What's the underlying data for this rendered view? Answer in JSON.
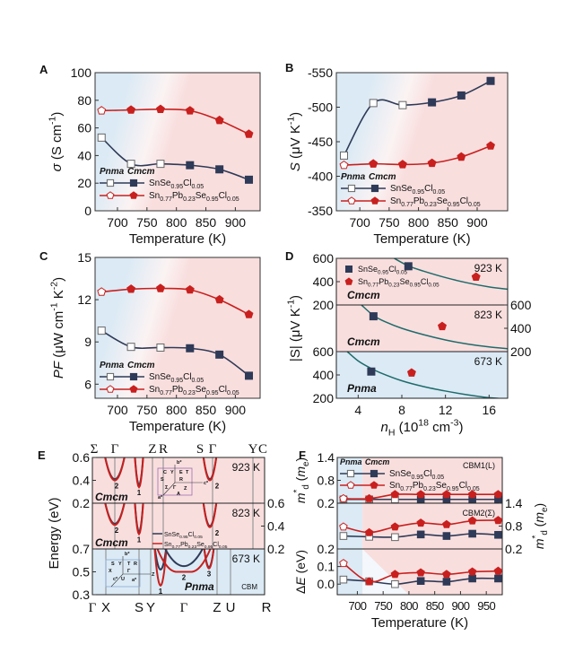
{
  "colors": {
    "snse": "#2e3a57",
    "pb": "#c8201e",
    "pnma": "#2a6ebb",
    "cmcm": "#c8201e",
    "pnma_bg": "#dbeaf5",
    "cmcm_bg": "#f9dede",
    "curve": "#1f6b6b"
  },
  "legend": {
    "pnma": "Pnma",
    "cmcm": "Cmcm",
    "snse": "SnSe_{0.95}Cl_{0.05}",
    "pb": "Sn_{0.77}Pb_{0.23}Se_{0.95}Cl_{0.05}"
  },
  "chart_data": [
    {
      "id": "A",
      "panel_label": "A",
      "type": "line",
      "xlabel": "Temperature (K)",
      "ylabel": "*σ* (S cm^{-1})",
      "xlim": [
        662,
        942
      ],
      "ylim": [
        0,
        100
      ],
      "xticks": [
        700,
        750,
        800,
        850,
        900
      ],
      "yticks": [
        0,
        20,
        40,
        60,
        80,
        100
      ],
      "x": [
        673,
        723,
        773,
        823,
        873,
        923
      ],
      "series": [
        {
          "name": "SnSe_{0.95}Cl_{0.05}",
          "values": [
            53,
            34,
            34,
            33,
            30,
            22.5
          ],
          "open_points": 3,
          "marker": "square",
          "color": "#2e3a57"
        },
        {
          "name": "Sn_{0.77}Pb_{0.23}Se_{0.95}Cl_{0.05}",
          "values": [
            72.5,
            73,
            73.5,
            72.5,
            65.5,
            55.5
          ],
          "open_points": 1,
          "marker": "pentagon",
          "color": "#c8201e"
        }
      ]
    },
    {
      "id": "B",
      "panel_label": "B",
      "type": "line",
      "xlabel": "Temperature (K)",
      "ylabel": "*S* (μV K^{-1})",
      "xlim": [
        660,
        952
      ],
      "ylim": [
        -350,
        -550
      ],
      "xticks": [
        700,
        750,
        800,
        850,
        900
      ],
      "yticks": [
        -350,
        -400,
        -450,
        -500,
        -550
      ],
      "x": [
        673,
        723,
        773,
        823,
        873,
        923
      ],
      "series": [
        {
          "name": "SnSe_{0.95}Cl_{0.05}",
          "values": [
            -430,
            -506,
            -503,
            -507,
            -517,
            -538
          ],
          "open_points": 3,
          "marker": "square",
          "color": "#2e3a57"
        },
        {
          "name": "Sn_{0.77}Pb_{0.23}Se_{0.95}Cl_{0.05}",
          "values": [
            -416,
            -418,
            -417,
            -419,
            -428,
            -444
          ],
          "open_points": 1,
          "marker": "pentagon",
          "color": "#c8201e"
        }
      ]
    },
    {
      "id": "C",
      "panel_label": "C",
      "type": "line",
      "xlabel": "Temperature (K)",
      "ylabel": "*PF* (μW cm^{-1} K^{-2})",
      "xlim": [
        662,
        942
      ],
      "ylim": [
        5,
        15
      ],
      "xticks": [
        700,
        750,
        800,
        850,
        900
      ],
      "yticks": [
        6,
        9,
        12,
        15
      ],
      "x": [
        673,
        723,
        773,
        823,
        873,
        923
      ],
      "series": [
        {
          "name": "SnSe_{0.95}Cl_{0.05}",
          "values": [
            9.8,
            8.65,
            8.6,
            8.55,
            8.1,
            6.6
          ],
          "open_points": 3,
          "marker": "square",
          "color": "#2e3a57"
        },
        {
          "name": "Sn_{0.77}Pb_{0.23}Se_{0.95}Cl_{0.05}",
          "values": [
            12.55,
            12.75,
            12.8,
            12.7,
            12.0,
            10.95
          ],
          "open_points": 1,
          "marker": "pentagon",
          "color": "#c8201e"
        }
      ]
    },
    {
      "id": "D",
      "panel_label": "D",
      "type": "scatter",
      "xlabel": "*n*_{H} (10^{18} cm^{-3})",
      "ylabel": "|S| (μV K^{-1})",
      "xlim": [
        2,
        17.7
      ],
      "xticks": [
        4,
        8,
        12,
        16
      ],
      "subpanels": [
        {
          "temperature": "923 K",
          "phase": "Cmcm",
          "ylim": [
            200,
            600
          ],
          "yticks": [
            200,
            400,
            600
          ],
          "axis": "left",
          "snse": [
            8.6,
            532
          ],
          "pb": [
            14.8,
            440
          ],
          "curve": [
            [
              7.3,
              600
            ],
            [
              8.6,
              535
            ],
            [
              10,
              490
            ],
            [
              12,
              435
            ],
            [
              14,
              390
            ],
            [
              16,
              355
            ],
            [
              17.7,
              335
            ]
          ]
        },
        {
          "temperature": "823 K",
          "phase": "Cmcm",
          "ylim": [
            200,
            600
          ],
          "yticks": [
            200,
            400,
            600
          ],
          "axis": "right",
          "snse": [
            5.4,
            503
          ],
          "pb": [
            11.7,
            416
          ],
          "curve": [
            [
              4.3,
              600
            ],
            [
              5.4,
              510
            ],
            [
              6.5,
              455
            ],
            [
              8,
              400
            ],
            [
              10,
              345
            ],
            [
              12,
              300
            ],
            [
              14,
              265
            ],
            [
              16,
              240
            ],
            [
              17.7,
              225
            ]
          ]
        },
        {
          "temperature": "673 K",
          "phase": "Pnma",
          "ylim": [
            200,
            600
          ],
          "yticks": [
            200,
            400,
            600
          ],
          "axis": "left",
          "snse": [
            5.2,
            429
          ],
          "pb": [
            8.9,
            418
          ],
          "curve": [
            [
              3,
              600
            ],
            [
              4,
              520
            ],
            [
              5,
              465
            ],
            [
              6,
              420
            ],
            [
              8,
              350
            ],
            [
              10,
              300
            ],
            [
              12,
              262
            ],
            [
              14,
              230
            ],
            [
              16,
              205
            ],
            [
              17.7,
              195
            ]
          ]
        }
      ]
    },
    {
      "id": "E",
      "panel_label": "E",
      "type": "line",
      "ylabel": "Energy (eV)",
      "top_kpoints": [
        "Σ",
        "Γ",
        "Z",
        "R",
        "S",
        "Γ",
        "Y",
        "C"
      ],
      "bottom_kpoints": [
        "Γ",
        "X",
        "S",
        "Y",
        "Γ",
        "Z",
        "U",
        "R"
      ],
      "legend_series": [
        "SnSe_{0.95}Cl_{0.05}",
        "Sn_{0.77}Pb_{0.23}Se_{0.95}Cl_{0.05}"
      ],
      "cbm_label": "CBM",
      "subpanels": [
        {
          "temperature": "923 K",
          "phase": "Cmcm",
          "ylim": [
            0.2,
            0.6
          ],
          "yticks": [
            0.2,
            0.4,
            0.6
          ],
          "axis": "left",
          "valleys": [
            {
              "label": "2",
              "snse_min": 0.41,
              "pb_min": 0.4
            },
            {
              "label": "1",
              "snse_min": 0.36,
              "pb_min": 0.34
            },
            {
              "label": "2",
              "snse_min": 0.41,
              "pb_min": 0.4
            }
          ],
          "inset_labels": [
            "b*",
            "C",
            "Y",
            "E",
            "T",
            "S",
            "R",
            "c*",
            "Σ",
            "Γ",
            "Z",
            "A",
            "a*"
          ]
        },
        {
          "temperature": "823 K",
          "phase": "Cmcm",
          "ylim": [
            0.2,
            0.6
          ],
          "yticks": [
            0.2,
            0.4,
            0.6
          ],
          "axis": "right",
          "valleys": [
            {
              "label": "2",
              "snse_min": 0.42,
              "pb_min": 0.41
            },
            {
              "label": "1",
              "snse_min": 0.35,
              "pb_min": 0.33
            },
            {
              "label": "2",
              "snse_min": 0.4,
              "pb_min": 0.39
            }
          ]
        },
        {
          "temperature": "673 K",
          "phase": "Pnma",
          "ylim": [
            0.3,
            0.7
          ],
          "yticks": [
            0.3,
            0.5,
            0.7
          ],
          "axis": "left",
          "valleys": [
            {
              "label": "1",
              "snse_min": 0.52,
              "pb_min": 0.38
            },
            {
              "label": "2",
              "snse_min": 0.55,
              "pb_min": 0.5
            },
            {
              "label": "3",
              "snse_min": 0.54,
              "pb_min": 0.53
            }
          ],
          "inset_labels": [
            "b*",
            "S",
            "Y",
            "T",
            "R",
            "X",
            "Γ",
            "Z",
            "c*",
            "U",
            "a*"
          ]
        }
      ]
    },
    {
      "id": "F",
      "panel_label": "F",
      "type": "line",
      "xlabel": "Temperature (K)",
      "xlim": [
        661,
        981
      ],
      "xticks": [
        700,
        750,
        800,
        850,
        900,
        950
      ],
      "x": [
        673,
        723,
        773,
        823,
        873,
        923,
        973
      ],
      "subpanels": [
        {
          "title": "CBM1(L)",
          "ylabel": "*m*^{*}_{d} (*m*_{e})",
          "ylim": [
            0.2,
            1.4
          ],
          "yticks": [
            0.2,
            0.8,
            1.4
          ],
          "axis": "left",
          "snse": [
            0.3,
            0.3,
            0.3,
            0.3,
            0.3,
            0.3,
            0.3
          ],
          "pb": [
            0.32,
            0.32,
            0.43,
            0.43,
            0.43,
            0.43,
            0.43
          ]
        },
        {
          "title": "CBM2(Σ)",
          "ylabel": "*m*^{*}_{d} (*m*_{e})",
          "ylim": [
            0.2,
            1.4
          ],
          "yticks": [
            0.2,
            0.8,
            1.4
          ],
          "axis": "right",
          "snse": [
            0.54,
            0.52,
            0.51,
            0.58,
            0.54,
            0.6,
            0.57
          ],
          "pb": [
            0.78,
            0.63,
            0.78,
            0.88,
            0.84,
            0.94,
            0.95
          ]
        },
        {
          "title": "",
          "ylabel": "Δ*E* (eV)",
          "ylim": [
            -0.06,
            0.2
          ],
          "yticks": [
            0.0,
            0.1,
            0.2
          ],
          "axis": "left",
          "snse": [
            0.026,
            0.016,
            0.0,
            0.018,
            0.014,
            0.032,
            0.032
          ],
          "pb": [
            0.118,
            0.014,
            0.056,
            0.065,
            0.056,
            0.07,
            0.074
          ]
        }
      ],
      "open_points": {
        "snse": 3,
        "pb": 1
      }
    }
  ]
}
